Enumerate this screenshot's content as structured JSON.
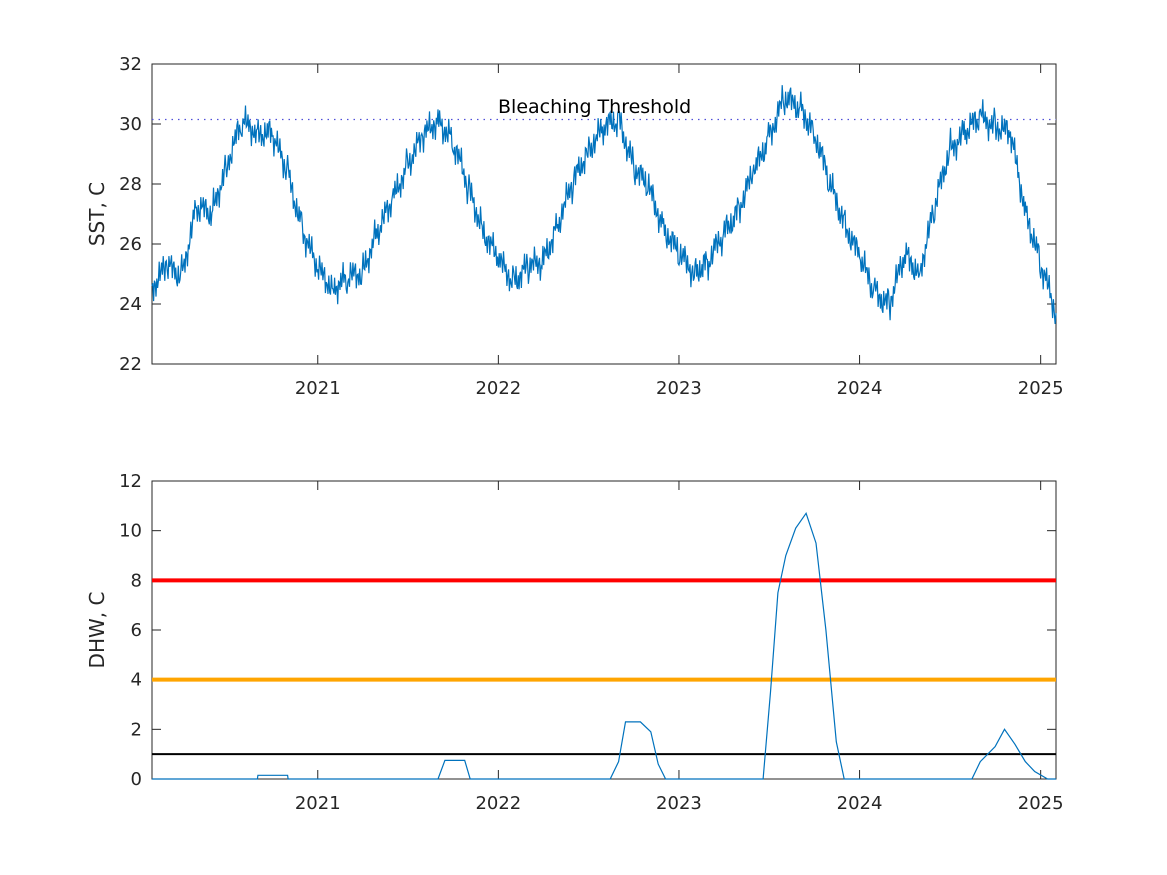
{
  "chart_data": [
    {
      "type": "line",
      "ylabel": "SST, C",
      "xlim": [
        "2020-02-01",
        "2025-02-01"
      ],
      "ylim": [
        22,
        32
      ],
      "yticks": [
        22,
        24,
        26,
        28,
        30,
        32
      ],
      "xticks": [
        "2021-01-01",
        "2022-01-01",
        "2023-01-01",
        "2024-01-01",
        "2025-01-01"
      ],
      "xtick_labels": [
        "2021",
        "2022",
        "2023",
        "2024",
        "2025"
      ],
      "threshold": {
        "label": "Bleaching Threshold",
        "value": 30.15,
        "style": "dotted",
        "color": "#4f4fd9"
      },
      "series_color": "#0072bd",
      "x": [
        "2020-02-01",
        "2020-03-01",
        "2020-04-01",
        "2020-05-01",
        "2020-06-01",
        "2020-07-01",
        "2020-08-01",
        "2020-09-01",
        "2020-10-01",
        "2020-11-01",
        "2020-12-01",
        "2021-01-01",
        "2021-02-01",
        "2021-03-01",
        "2021-04-01",
        "2021-05-01",
        "2021-06-01",
        "2021-07-01",
        "2021-08-01",
        "2021-09-01",
        "2021-10-01",
        "2021-11-01",
        "2021-12-01",
        "2022-01-01",
        "2022-02-01",
        "2022-03-01",
        "2022-04-01",
        "2022-05-01",
        "2022-06-01",
        "2022-07-01",
        "2022-08-01",
        "2022-09-01",
        "2022-10-01",
        "2022-11-01",
        "2022-12-01",
        "2023-01-01",
        "2023-02-01",
        "2023-03-01",
        "2023-04-01",
        "2023-05-01",
        "2023-06-01",
        "2023-07-01",
        "2023-08-01",
        "2023-09-01",
        "2023-10-01",
        "2023-11-01",
        "2023-12-01",
        "2024-01-01",
        "2024-02-01",
        "2024-03-01",
        "2024-04-01",
        "2024-05-01",
        "2024-06-01",
        "2024-07-01",
        "2024-08-01",
        "2024-09-01",
        "2024-10-01",
        "2024-11-01",
        "2024-12-01",
        "2025-01-01",
        "2025-02-01"
      ],
      "y": [
        24.6,
        25.2,
        25.0,
        27.2,
        27.0,
        28.7,
        30.0,
        29.8,
        29.6,
        28.4,
        26.5,
        25.1,
        24.6,
        24.8,
        25.1,
        26.4,
        27.4,
        28.7,
        29.5,
        30.2,
        29.4,
        27.9,
        26.5,
        25.4,
        24.8,
        25.2,
        25.4,
        26.7,
        28.0,
        29.2,
        29.8,
        30.2,
        28.6,
        27.8,
        26.6,
        25.6,
        25.1,
        25.4,
        26.3,
        27.2,
        28.3,
        29.6,
        30.8,
        30.6,
        29.8,
        28.0,
        26.8,
        25.5,
        24.4,
        24.0,
        25.6,
        25.1,
        27.2,
        29.2,
        29.7,
        30.2,
        30.0,
        29.6,
        27.2,
        25.3,
        23.7
      ]
    },
    {
      "type": "line",
      "ylabel": "DHW, C",
      "xlim": [
        "2020-02-01",
        "2025-02-01"
      ],
      "ylim": [
        0,
        12
      ],
      "yticks": [
        0,
        2,
        4,
        6,
        8,
        10,
        12
      ],
      "xticks": [
        "2021-01-01",
        "2022-01-01",
        "2023-01-01",
        "2024-01-01",
        "2025-01-01"
      ],
      "xtick_labels": [
        "2021",
        "2022",
        "2023",
        "2024",
        "2025"
      ],
      "reference_lines": [
        {
          "value": 8,
          "color": "#ff0000"
        },
        {
          "value": 4,
          "color": "#ffa500"
        },
        {
          "value": 1,
          "color": "#000000"
        }
      ],
      "series_color": "#0072bd",
      "x": [
        "2020-02-01",
        "2020-09-01",
        "2020-09-02",
        "2020-11-01",
        "2020-11-02",
        "2021-09-01",
        "2021-09-15",
        "2021-10-25",
        "2021-11-05",
        "2022-08-15",
        "2022-09-01",
        "2022-09-15",
        "2022-10-15",
        "2022-11-05",
        "2022-11-20",
        "2022-12-05",
        "2023-06-20",
        "2023-07-05",
        "2023-07-20",
        "2023-08-05",
        "2023-08-25",
        "2023-09-15",
        "2023-10-05",
        "2023-10-25",
        "2023-11-15",
        "2023-12-01",
        "2024-08-15",
        "2024-09-01",
        "2024-10-01",
        "2024-10-20",
        "2024-11-10",
        "2024-12-01",
        "2024-12-20",
        "2025-01-15",
        "2025-02-01"
      ],
      "y": [
        0,
        0,
        0.15,
        0.15,
        0,
        0,
        0.75,
        0.75,
        0,
        0,
        0.7,
        2.3,
        2.3,
        1.9,
        0.6,
        0,
        0,
        3.5,
        7.5,
        9.0,
        10.1,
        10.7,
        9.5,
        6.0,
        1.5,
        0,
        0,
        0.7,
        1.3,
        2.0,
        1.4,
        0.7,
        0.3,
        0,
        0
      ]
    }
  ]
}
